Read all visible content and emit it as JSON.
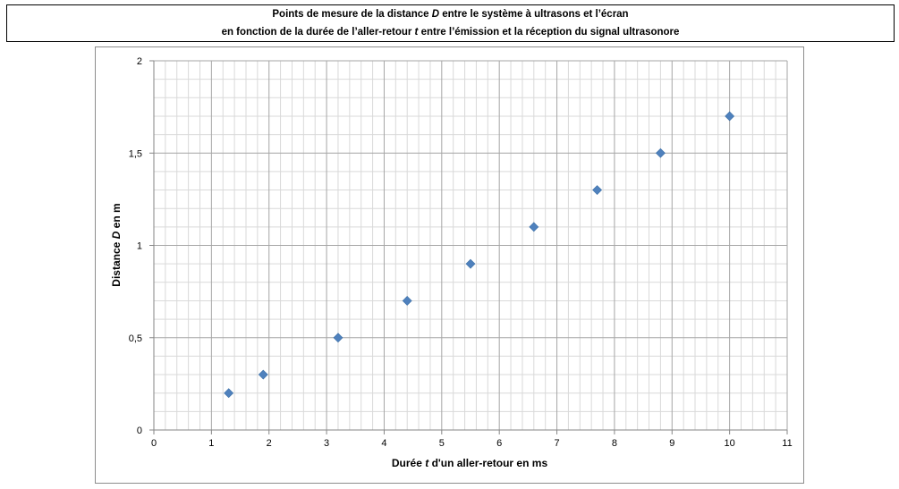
{
  "chart_data": {
    "type": "scatter",
    "title_line1_prefix": "Points de mesure de la distance ",
    "title_line1_var": "D",
    "title_line1_suffix": " entre le système à ultrasons et l’écran",
    "title_line2_prefix": "en fonction de la durée de l’aller-retour ",
    "title_line2_var": "t",
    "title_line2_suffix": " entre l’émission et la réception du signal ultrasonore",
    "xlabel_prefix": "Durée ",
    "xlabel_var": "t",
    "xlabel_suffix": " d'un aller-retour en ms",
    "ylabel_prefix": "Distance ",
    "ylabel_var": "D",
    "ylabel_suffix": " en m",
    "xlim": [
      0,
      11
    ],
    "ylim": [
      0,
      2
    ],
    "x_ticks": [
      "0",
      "1",
      "2",
      "3",
      "4",
      "5",
      "6",
      "7",
      "8",
      "9",
      "10",
      "11"
    ],
    "y_ticks": [
      "0",
      "0,5",
      "1",
      "1,5",
      "2"
    ],
    "grid": true,
    "marker": "diamond",
    "color": "#4f81bd",
    "points": [
      {
        "x": 1.3,
        "y": 0.2
      },
      {
        "x": 1.9,
        "y": 0.3
      },
      {
        "x": 3.2,
        "y": 0.5
      },
      {
        "x": 4.4,
        "y": 0.7
      },
      {
        "x": 5.5,
        "y": 0.9
      },
      {
        "x": 6.6,
        "y": 1.1
      },
      {
        "x": 7.7,
        "y": 1.3
      },
      {
        "x": 8.8,
        "y": 1.5
      },
      {
        "x": 10.0,
        "y": 1.7
      }
    ]
  }
}
